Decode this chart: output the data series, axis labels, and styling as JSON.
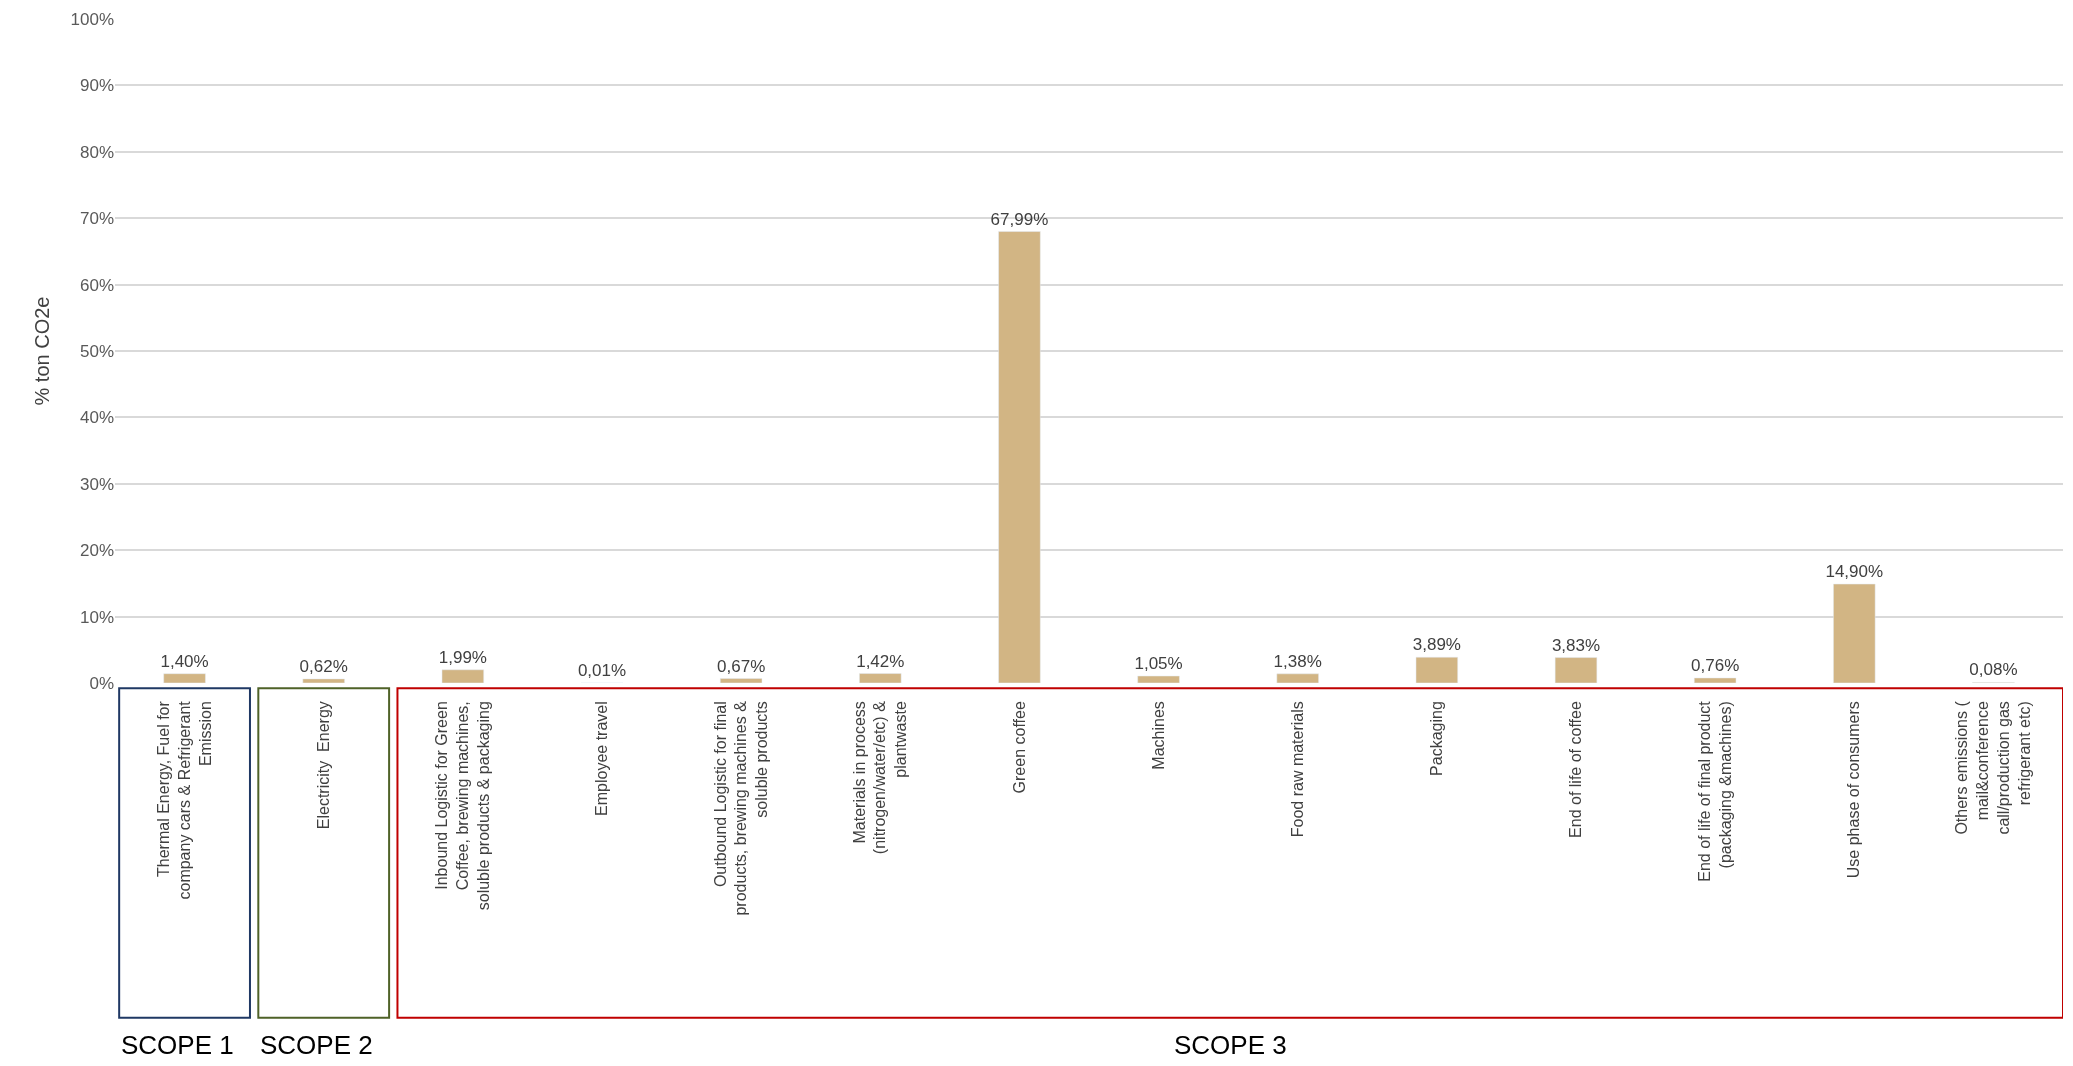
{
  "chart_data": {
    "type": "bar",
    "ylabel": "% ton CO2e",
    "categories": [
      "Thermal Energy, Fuel for company cars & Refrigerant Emission",
      "Electricity  Energy",
      "Inbound Logistic for Green Coffee, brewing machines, soluble products & packaging",
      "Employee travel",
      "Outbound Logistic for final products, brewing machines & soluble products",
      "Materials in process (nitrogen/water/etc) & plantwaste",
      "Green coffee",
      "Machines",
      "Food raw materials",
      "Packaging",
      "End of life of coffee",
      "End of life of final product (packaging &machines)",
      "Use phase of consumers",
      "Others emissions ( mail&conference call/production gas refrigerant etc)"
    ],
    "values": [
      1.4,
      0.62,
      1.99,
      0.01,
      0.67,
      1.42,
      67.99,
      1.05,
      1.38,
      3.89,
      3.83,
      0.76,
      14.9,
      0.08
    ],
    "value_labels": [
      "1,40%",
      "0,62%",
      "1,99%",
      "0,01%",
      "0,67%",
      "1,42%",
      "67,99%",
      "1,05%",
      "1,38%",
      "3,89%",
      "3,83%",
      "0,76%",
      "14,90%",
      "0,08%"
    ],
    "color": "#d2b584",
    "ylim": [
      0,
      100
    ],
    "yticks": [
      {
        "value": 0,
        "label": "0%"
      },
      {
        "value": 10,
        "label": "10%"
      },
      {
        "value": 20,
        "label": "20%"
      },
      {
        "value": 30,
        "label": "30%"
      },
      {
        "value": 40,
        "label": "40%"
      },
      {
        "value": 50,
        "label": "50%"
      },
      {
        "value": 60,
        "label": "60%"
      },
      {
        "value": 70,
        "label": "70%"
      },
      {
        "value": 80,
        "label": "80%"
      },
      {
        "value": 90,
        "label": "90%"
      },
      {
        "value": 100,
        "label": "100%"
      }
    ],
    "grid": "y",
    "annotations": [
      "SCOPE 1",
      "SCOPE 2",
      "SCOPE 3"
    ]
  }
}
